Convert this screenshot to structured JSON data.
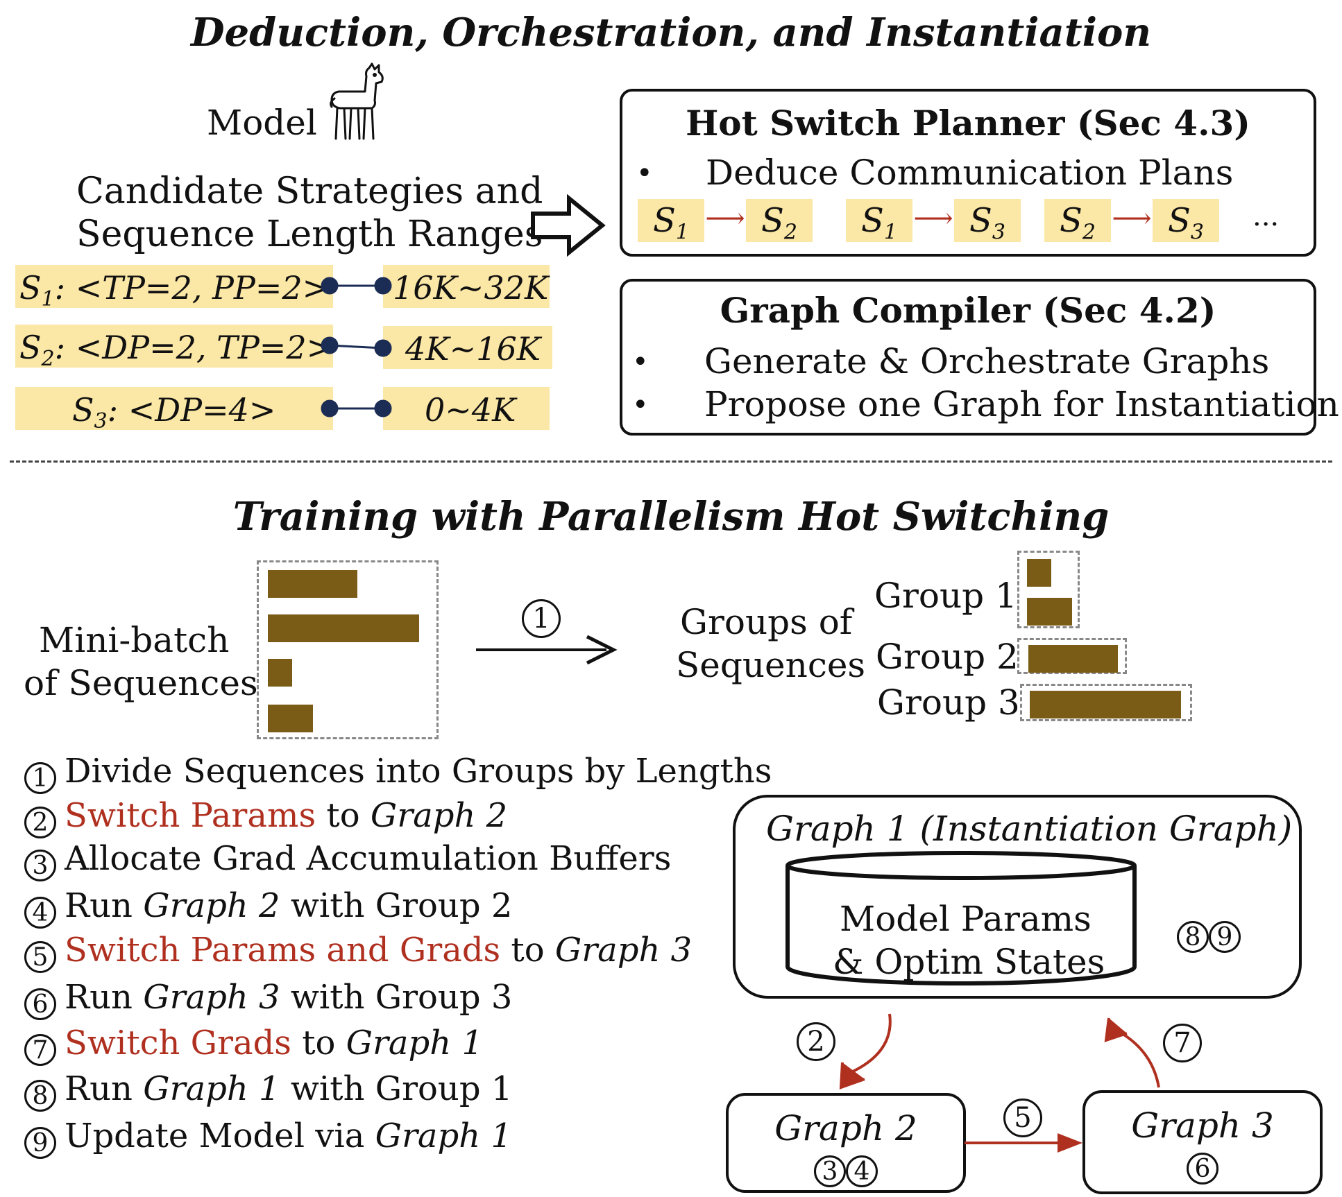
{
  "top": {
    "title": "Deduction, Orchestration, and Instantiation",
    "model_label": "Model",
    "llama_icon": "llama-icon",
    "candidate_line1": "Candidate Strategies and",
    "candidate_line2": "Sequence Length Ranges",
    "strategies": [
      {
        "sub": "1",
        "label": ": <TP=2, PP=2>",
        "range": "16K~32K"
      },
      {
        "sub": "2",
        "label": ": <DP=2, TP=2>",
        "range": "4K~16K"
      },
      {
        "sub": "3",
        "label": ": <DP=4>",
        "range": "0~4K"
      }
    ],
    "planner": {
      "title": "Hot Switch Planner (Sec 4.3)",
      "bullet": "Deduce Communication Plans",
      "pairs": [
        [
          "1",
          "2"
        ],
        [
          "1",
          "3"
        ],
        [
          "2",
          "3"
        ]
      ],
      "ellipsis": "..."
    },
    "compiler": {
      "title": "Graph Compiler (Sec 4.2)",
      "bullets": [
        "Generate & Orchestrate Graphs",
        "Propose one Graph for Instantiation"
      ]
    }
  },
  "bottom": {
    "title": "Training with Parallelism Hot Switching",
    "minibatch_line1": "Mini-batch",
    "minibatch_line2": "of Sequences",
    "minibatch_lengths": [
      0.59,
      1.0,
      0.16,
      0.3
    ],
    "arrow_step": "1",
    "groups_line1": "Groups of",
    "groups_line2": "Sequences",
    "groups": [
      {
        "label": "Group 1",
        "lengths": [
          0.16,
          0.3
        ]
      },
      {
        "label": "Group 2",
        "lengths": [
          0.59
        ]
      },
      {
        "label": "Group 3",
        "lengths": [
          1.0
        ]
      }
    ],
    "steps": [
      {
        "n": "1",
        "parts": [
          [
            "Divide Sequences into Groups by Lengths",
            ""
          ]
        ]
      },
      {
        "n": "2",
        "parts": [
          [
            "Switch Params",
            "red"
          ],
          [
            " to ",
            ""
          ],
          [
            "Graph 2",
            "it"
          ]
        ]
      },
      {
        "n": "3",
        "parts": [
          [
            "Allocate Grad Accumulation Buffers",
            ""
          ]
        ]
      },
      {
        "n": "4",
        "parts": [
          [
            "Run ",
            ""
          ],
          [
            "Graph 2",
            "it"
          ],
          [
            " with Group 2",
            ""
          ]
        ]
      },
      {
        "n": "5",
        "parts": [
          [
            "Switch Params and Grads",
            "red"
          ],
          [
            " to ",
            ""
          ],
          [
            "Graph 3",
            "it"
          ]
        ]
      },
      {
        "n": "6",
        "parts": [
          [
            "Run ",
            ""
          ],
          [
            "Graph 3",
            "it"
          ],
          [
            " with Group 3",
            ""
          ]
        ]
      },
      {
        "n": "7",
        "parts": [
          [
            "Switch Grads",
            "red"
          ],
          [
            " to ",
            ""
          ],
          [
            "Graph 1",
            "it"
          ]
        ]
      },
      {
        "n": "8",
        "parts": [
          [
            "Run ",
            ""
          ],
          [
            "Graph 1",
            "it"
          ],
          [
            " with Group 1",
            ""
          ]
        ]
      },
      {
        "n": "9",
        "parts": [
          [
            "Update Model via ",
            ""
          ],
          [
            "Graph 1",
            "it"
          ]
        ]
      }
    ],
    "graph1": {
      "title": "Graph 1 (Instantiation Graph)",
      "db_line1": "Model Params",
      "db_line2": "& Optim States",
      "steps": [
        "8",
        "9"
      ]
    },
    "graph2": {
      "title": "Graph 2",
      "steps": [
        "3",
        "4"
      ]
    },
    "graph3": {
      "title": "Graph 3",
      "steps": [
        "6"
      ]
    },
    "arrow_labels": {
      "to_graph2": "2",
      "to_graph3": "5",
      "to_graph1": "7"
    },
    "colors": {
      "bar": "#7a5c17",
      "highlight": "#fbe7a6",
      "red": "#b03020",
      "node": "#1c2d55"
    }
  }
}
